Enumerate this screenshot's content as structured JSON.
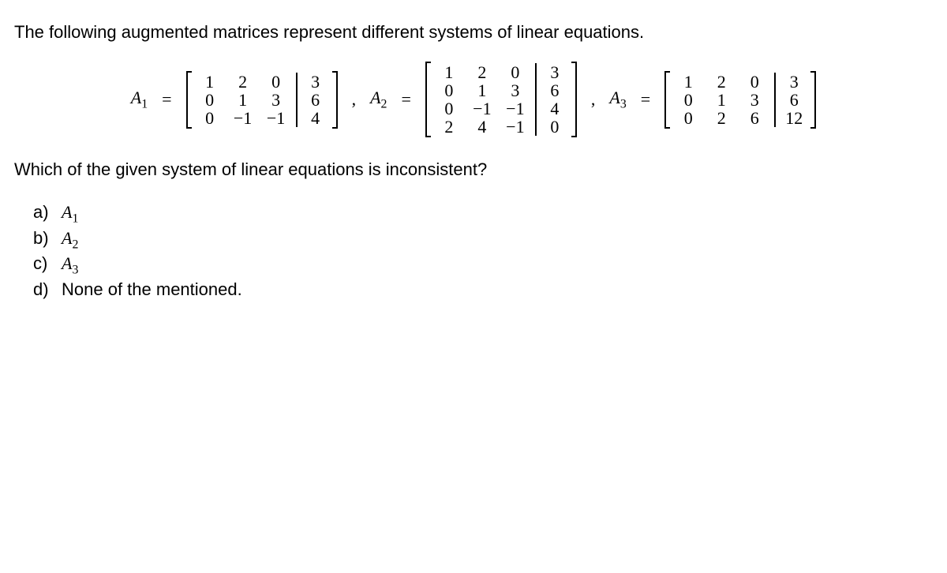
{
  "intro": "The following augmented matrices represent different systems of linear equations.",
  "matrices": {
    "A1": {
      "label": "A",
      "sub": "1",
      "rows": [
        [
          "1",
          "2",
          "0",
          "3"
        ],
        [
          "0",
          "1",
          "3",
          "6"
        ],
        [
          "0",
          "−1",
          "−1",
          "4"
        ]
      ]
    },
    "A2": {
      "label": "A",
      "sub": "2",
      "rows": [
        [
          "1",
          "2",
          "0",
          "3"
        ],
        [
          "0",
          "1",
          "3",
          "6"
        ],
        [
          "0",
          "−1",
          "−1",
          "4"
        ],
        [
          "2",
          "4",
          "−1",
          "0"
        ]
      ]
    },
    "A3": {
      "label": "A",
      "sub": "3",
      "rows": [
        [
          "1",
          "2",
          "0",
          "3"
        ],
        [
          "0",
          "1",
          "3",
          "6"
        ],
        [
          "0",
          "2",
          "6",
          "12"
        ]
      ]
    }
  },
  "question": "Which of the given system of linear equations is inconsistent?",
  "options": [
    {
      "letter": "a)",
      "math": true,
      "label": "A",
      "sub": "1"
    },
    {
      "letter": "b)",
      "math": true,
      "label": "A",
      "sub": "2"
    },
    {
      "letter": "c)",
      "math": true,
      "label": "A",
      "sub": "3"
    },
    {
      "letter": "d)",
      "math": false,
      "text": "None of the mentioned."
    }
  ],
  "symbols": {
    "eq": "=",
    "comma": ","
  }
}
